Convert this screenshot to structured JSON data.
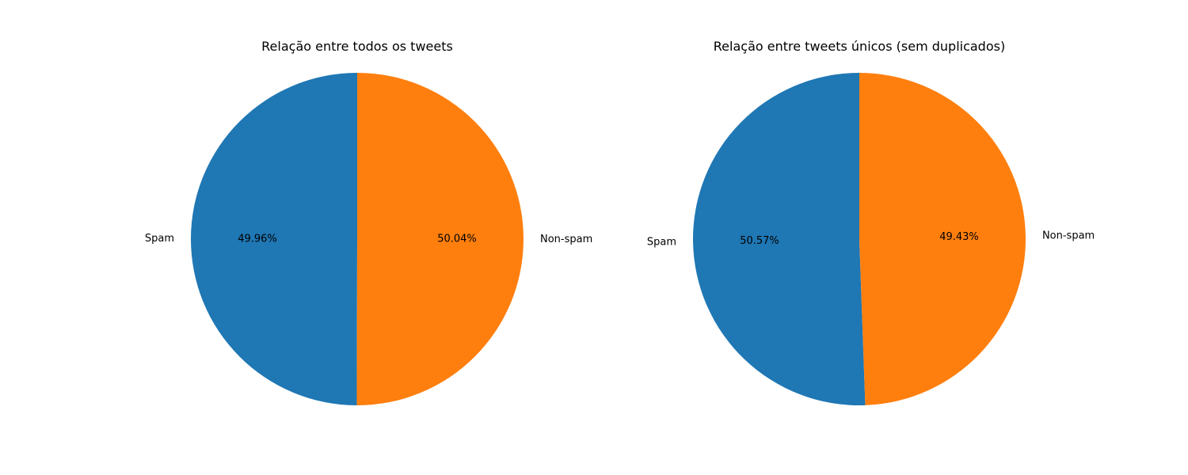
{
  "chart_data": [
    {
      "type": "pie",
      "title": "Relação entre todos os tweets",
      "labels": [
        "Spam",
        "Non-spam"
      ],
      "values": [
        49.96,
        50.04
      ],
      "value_labels": [
        "49.96%",
        "50.04%"
      ],
      "colors": [
        "#1f77b4",
        "#ff7f0e"
      ],
      "start_angle_deg": 90,
      "direction": "counterclockwise",
      "legend": "none"
    },
    {
      "type": "pie",
      "title": "Relação entre tweets únicos (sem duplicados)",
      "labels": [
        "Spam",
        "Non-spam"
      ],
      "values": [
        50.57,
        49.43
      ],
      "value_labels": [
        "50.57%",
        "49.43%"
      ],
      "colors": [
        "#1f77b4",
        "#ff7f0e"
      ],
      "start_angle_deg": 90,
      "direction": "counterclockwise",
      "legend": "none"
    }
  ]
}
